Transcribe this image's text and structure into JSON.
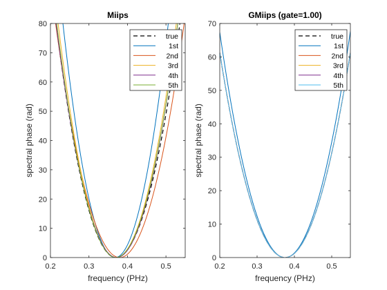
{
  "colors": {
    "true": "#000000",
    "s1": "#0072BD",
    "s2": "#D95319",
    "s3": "#EDB120",
    "s4": "#7E2F8E",
    "s5": "#77AC30",
    "g1": "#0072BD",
    "g2": "#D95319",
    "g3": "#EDB120",
    "g4": "#7E2F8E",
    "g5": "#4DBEEE"
  },
  "chart_data": [
    {
      "type": "line",
      "title": "Miips",
      "xlabel": "frequency (PHz)",
      "ylabel": "spectral phase (rad)",
      "xlim": [
        0.2,
        0.55
      ],
      "ylim": [
        0,
        80
      ],
      "xticks": [
        0.2,
        0.3,
        0.4,
        0.5
      ],
      "xtick_labels": [
        "0.2",
        "0.3",
        "0.4",
        "0.5"
      ],
      "yticks": [
        0,
        10,
        20,
        30,
        40,
        50,
        60,
        70,
        80
      ],
      "ytick_labels": [
        "0",
        "10",
        "20",
        "30",
        "40",
        "50",
        "60",
        "70",
        "80"
      ],
      "legend": [
        "true",
        "1st",
        "2nd",
        "3rd",
        "4th",
        "5th"
      ],
      "legend_position": "top-right",
      "series": [
        {
          "name": "true",
          "style": "dashed",
          "color_key": "true",
          "x0": 0.37,
          "a_left": 3300,
          "a_right": 2900
        },
        {
          "name": "1st",
          "style": "solid",
          "color_key": "s1",
          "x0": 0.368,
          "a_left": 4350,
          "a_right": 4200
        },
        {
          "name": "2nd",
          "style": "solid",
          "color_key": "s2",
          "x0": 0.38,
          "a_left": 2880,
          "a_right": 2860
        },
        {
          "name": "3rd",
          "style": "solid",
          "color_key": "s3",
          "x0": 0.37,
          "a_left": 3550,
          "a_right": 3250
        },
        {
          "name": "4th",
          "style": "solid",
          "color_key": "s4",
          "x0": 0.372,
          "a_left": 3220,
          "a_right": 3180
        },
        {
          "name": "5th",
          "style": "solid",
          "color_key": "s5",
          "x0": 0.37,
          "a_left": 3380,
          "a_right": 3100
        }
      ]
    },
    {
      "type": "line",
      "title": "GMiips (gate=1.00)",
      "xlabel": "frequency (PHz)",
      "ylabel": "spectral phase (rad)",
      "xlim": [
        0.2,
        0.55
      ],
      "ylim": [
        0,
        70
      ],
      "xticks": [
        0.2,
        0.3,
        0.4,
        0.5
      ],
      "xtick_labels": [
        "0.2",
        "0.3",
        "0.4",
        "0.5"
      ],
      "yticks": [
        0,
        10,
        20,
        30,
        40,
        50,
        60,
        70
      ],
      "ytick_labels": [
        "0",
        "10",
        "20",
        "30",
        "40",
        "50",
        "60",
        "70"
      ],
      "legend": [
        "true",
        "1st",
        "2nd",
        "3rd",
        "4th",
        "5th"
      ],
      "legend_position": "top-right",
      "series": [
        {
          "name": "true",
          "style": "dashed",
          "color_key": "true",
          "x0": 0.375,
          "a_left": 2000,
          "a_right": 2000
        },
        {
          "name": "1st",
          "style": "solid",
          "color_key": "g1",
          "x0": 0.375,
          "a_left": 2200,
          "a_right": 2210
        },
        {
          "name": "2nd",
          "style": "solid",
          "color_key": "g2",
          "x0": 0.375,
          "a_left": 2000,
          "a_right": 2000
        },
        {
          "name": "3rd",
          "style": "solid",
          "color_key": "g3",
          "x0": 0.375,
          "a_left": 2000,
          "a_right": 2000
        },
        {
          "name": "4th",
          "style": "solid",
          "color_key": "g4",
          "x0": 0.375,
          "a_left": 2000,
          "a_right": 2000
        },
        {
          "name": "5th",
          "style": "solid",
          "color_key": "g5",
          "x0": 0.375,
          "a_left": 2000,
          "a_right": 2000
        }
      ]
    }
  ]
}
